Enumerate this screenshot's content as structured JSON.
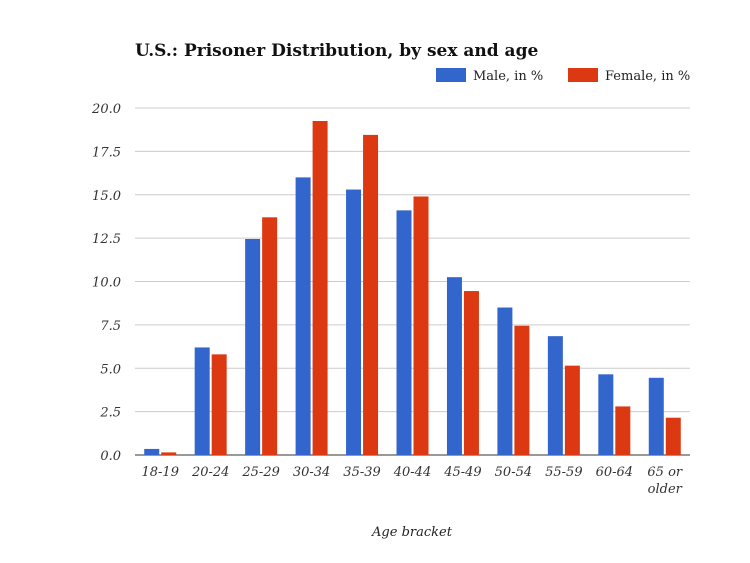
{
  "chart_data": {
    "type": "bar",
    "title": "U.S.: Prisoner Distribution, by sex and age",
    "xlabel": "Age bracket",
    "ylabel": "",
    "ylim": [
      0,
      20
    ],
    "yticks": [
      "0.0",
      "2.5",
      "5.0",
      "7.5",
      "10.0",
      "12.5",
      "15.0",
      "17.5",
      "20.0"
    ],
    "grid": true,
    "legend_position": "top-right",
    "categories": [
      "18-19",
      "20-24",
      "25-29",
      "30-34",
      "35-39",
      "40-44",
      "45-49",
      "50-54",
      "55-59",
      "60-64",
      "65 or older"
    ],
    "series": [
      {
        "name": "Male, in %",
        "color": "#3366cc",
        "values": [
          0.35,
          6.2,
          12.45,
          16.0,
          15.3,
          14.1,
          10.25,
          8.5,
          6.85,
          4.65,
          4.45
        ]
      },
      {
        "name": "Female, in %",
        "color": "#dc3912",
        "values": [
          0.15,
          5.8,
          13.7,
          19.25,
          18.45,
          14.9,
          9.45,
          7.45,
          5.15,
          2.8,
          2.15
        ]
      }
    ]
  }
}
